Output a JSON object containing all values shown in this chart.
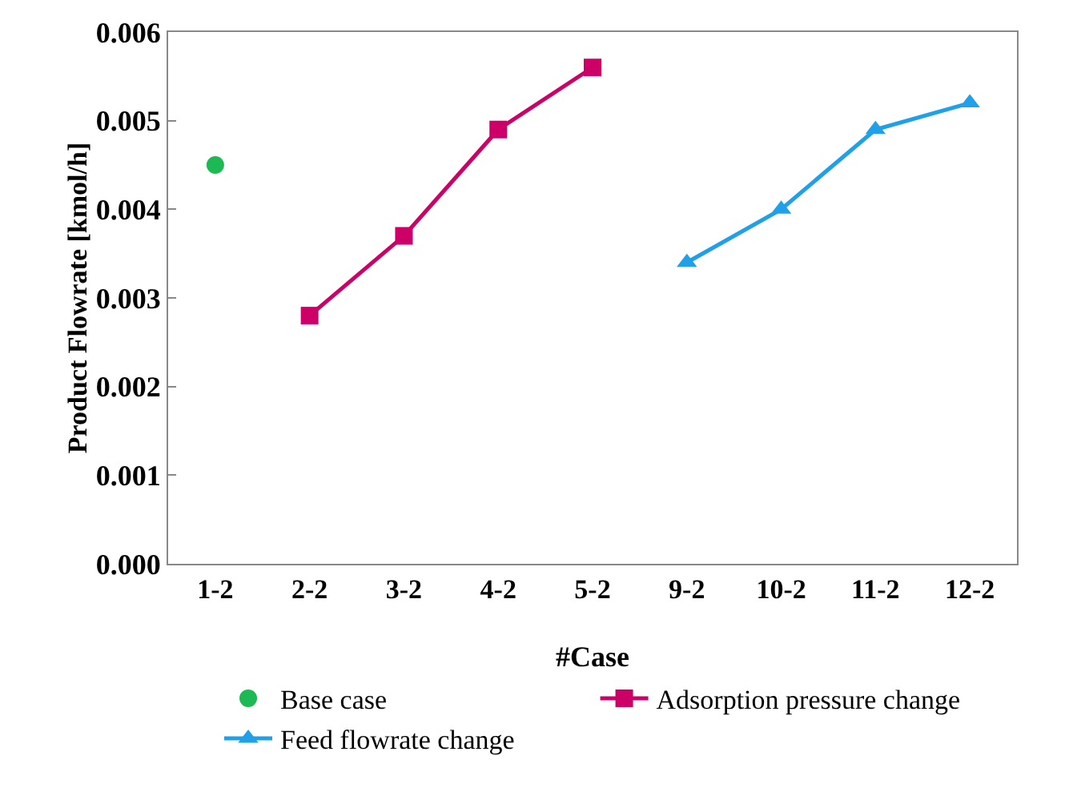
{
  "chart_data": {
    "type": "line",
    "xlabel": "#Case",
    "ylabel": "Product Flowrate [kmol/h]",
    "categories": [
      "1-2",
      "2-2",
      "3-2",
      "4-2",
      "5-2",
      "9-2",
      "10-2",
      "11-2",
      "12-2"
    ],
    "series": [
      {
        "name": "Base case",
        "type": "scatter",
        "marker": "circle",
        "color": "#1db954",
        "values": [
          0.0045,
          null,
          null,
          null,
          null,
          null,
          null,
          null,
          null
        ]
      },
      {
        "name": "Adsorption pressure change",
        "marker": "square",
        "color": "#cc0066",
        "values": [
          null,
          0.0028,
          0.0037,
          0.0049,
          0.0056,
          null,
          null,
          null,
          null
        ]
      },
      {
        "name": "Feed flowrate change",
        "marker": "triangle",
        "color": "#1fa0e8",
        "values": [
          null,
          null,
          null,
          null,
          null,
          0.0034,
          0.004,
          0.0049,
          0.0052
        ]
      }
    ],
    "ylim": [
      0,
      0.006
    ],
    "yticks": [
      {
        "value": 0,
        "label": "0.000"
      },
      {
        "value": 0.001,
        "label": "0.001"
      },
      {
        "value": 0.002,
        "label": "0.002"
      },
      {
        "value": 0.003,
        "label": "0.003"
      },
      {
        "value": 0.004,
        "label": "0.004"
      },
      {
        "value": 0.005,
        "label": "0.005"
      },
      {
        "value": 0.006,
        "label": "0.006"
      }
    ],
    "grid": false,
    "legend": "bottom",
    "line_style": "solid"
  }
}
